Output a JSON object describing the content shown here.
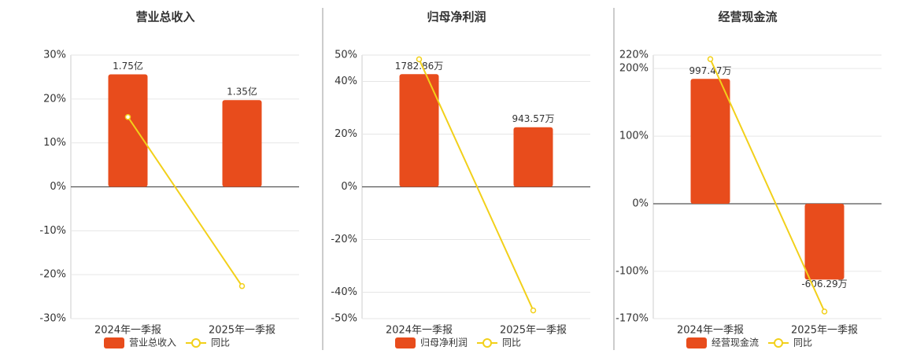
{
  "chart_data": [
    {
      "type": "bar",
      "title": "营业总收入",
      "categories": [
        "2024年一季报",
        "2025年一季报"
      ],
      "ylim": [
        -30,
        30
      ],
      "yticks": [
        {
          "value": 30,
          "label": "30%"
        },
        {
          "value": 20,
          "label": "20%"
        },
        {
          "value": 10,
          "label": "10%"
        },
        {
          "value": 0,
          "label": "0%"
        },
        {
          "value": -10,
          "label": "-10%"
        },
        {
          "value": -20,
          "label": "-20%"
        },
        {
          "value": -30,
          "label": "-30%"
        }
      ],
      "y2lim": [
        -2.05,
        2.05
      ],
      "series": [
        {
          "name": "营业总收入",
          "color": "#e84c1c",
          "axis": "y2",
          "values": [
            1.75,
            1.35
          ],
          "value_labels": [
            "1.75亿",
            "1.35亿"
          ]
        },
        {
          "name": "同比",
          "type": "line",
          "color": "#f2d01a",
          "values": [
            15.9,
            -22.6
          ]
        }
      ]
    },
    {
      "type": "bar",
      "title": "归母净利润",
      "categories": [
        "2024年一季报",
        "2025年一季报"
      ],
      "ylim": [
        -50,
        50
      ],
      "yticks": [
        {
          "value": 50,
          "label": "50%"
        },
        {
          "value": 40,
          "label": "40%"
        },
        {
          "value": 20,
          "label": "20%"
        },
        {
          "value": 0,
          "label": "0%"
        },
        {
          "value": -20,
          "label": "-20%"
        },
        {
          "value": -40,
          "label": "-40%"
        },
        {
          "value": -50,
          "label": "-50%"
        }
      ],
      "y2lim": [
        -2085,
        2085
      ],
      "series": [
        {
          "name": "归母净利润",
          "color": "#e84c1c",
          "axis": "y2",
          "values": [
            1782.86,
            943.57
          ],
          "value_labels": [
            "1782.86万",
            "943.57万"
          ]
        },
        {
          "name": "同比",
          "type": "line",
          "color": "#f2d01a",
          "values": [
            48.4,
            -46.9
          ]
        }
      ]
    },
    {
      "type": "bar",
      "title": "经营现金流",
      "categories": [
        "2024年一季报",
        "2025年一季报"
      ],
      "ylim": [
        -170,
        220
      ],
      "yticks": [
        {
          "value": 220,
          "label": "220%"
        },
        {
          "value": 200,
          "label": "200%"
        },
        {
          "value": 100,
          "label": "100%"
        },
        {
          "value": 0,
          "label": "0%"
        },
        {
          "value": -100,
          "label": "-100%"
        },
        {
          "value": -170,
          "label": "-170%"
        }
      ],
      "y2lim": [
        -918,
        1188
      ],
      "series": [
        {
          "name": "经营现金流",
          "color": "#e84c1c",
          "axis": "y2",
          "values": [
            997.47,
            -606.29
          ],
          "value_labels": [
            "997.47万",
            "-606.29万"
          ]
        },
        {
          "name": "同比",
          "type": "line",
          "color": "#f2d01a",
          "values": [
            214,
            -159.5
          ]
        }
      ]
    }
  ]
}
